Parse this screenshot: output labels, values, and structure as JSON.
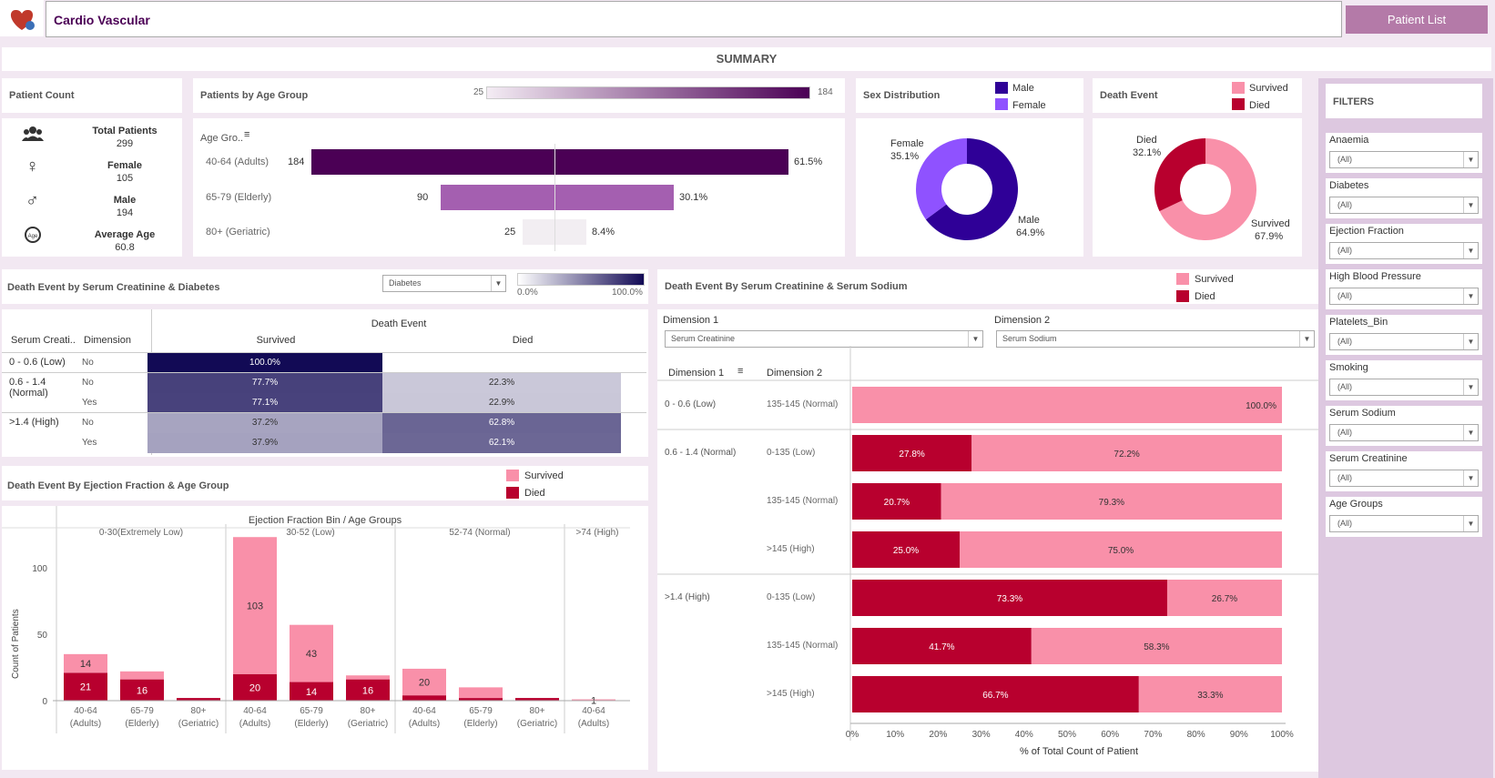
{
  "app": {
    "title": "Cardio Vascular",
    "patient_list_button": "Patient List",
    "summary": "SUMMARY"
  },
  "colors": {
    "purple": "#4b0055",
    "brand_bg": "#b47aa8",
    "survived": "#f990a9",
    "died": "#b8002e",
    "male": "#2f0097",
    "female": "#8f52ff"
  },
  "patient_count": {
    "title": "Patient Count",
    "items": [
      {
        "label": "Total Patients",
        "value": "299",
        "icon": "people-icon"
      },
      {
        "label": "Female",
        "value": "105",
        "icon": "female-icon"
      },
      {
        "label": "Male",
        "value": "194",
        "icon": "male-icon"
      },
      {
        "label": "Average Age",
        "value": "60.8",
        "icon": "age-icon"
      }
    ]
  },
  "age_group": {
    "title": "Patients by Age Group",
    "legend_min": "25",
    "legend_max": "184",
    "col_header": "Age Gro..",
    "rows": [
      {
        "label": "40-64 (Adults)",
        "count": 184,
        "count_label": "184",
        "pct": "61.5%"
      },
      {
        "label": "65-79 (Elderly)",
        "count": 90,
        "count_label": "90",
        "pct": "30.1%"
      },
      {
        "label": "80+ (Geriatric)",
        "count": 25,
        "count_label": "25",
        "pct": "8.4%"
      }
    ]
  },
  "sex": {
    "title": "Sex Distribution",
    "legend": [
      "Male",
      "Female"
    ],
    "female_label": "Female",
    "female_pct": "35.1%",
    "male_label": "Male",
    "male_pct": "64.9%",
    "female_value": 35.1,
    "male_value": 64.9
  },
  "death": {
    "title": "Death Event",
    "legend": [
      "Survived",
      "Died"
    ],
    "died_label": "Died",
    "died_pct": "32.1%",
    "survived_label": "Survived",
    "survived_pct": "67.9%",
    "died_value": 32.1,
    "survived_value": 67.9
  },
  "creat_diab": {
    "title": "Death Event by Serum Creatinine & Diabetes",
    "dropdown": "Diabetes",
    "scale_min": "0.0%",
    "scale_max": "100.0%",
    "col_serum": "Serum Creati..",
    "col_dim": "Dimension",
    "col_group": "Death Event",
    "col_survived": "Survived",
    "col_died": "Died",
    "rows": [
      {
        "group": "0 - 0.6 (Low)",
        "dim": "No",
        "survived": "100.0%",
        "died": "",
        "sv": 100,
        "dv": 0
      },
      {
        "group": "0.6 - 1.4\n(Normal)",
        "dim": "No",
        "survived": "77.7%",
        "died": "22.3%",
        "sv": 77.7,
        "dv": 22.3
      },
      {
        "group": "",
        "dim": "Yes",
        "survived": "77.1%",
        "died": "22.9%",
        "sv": 77.1,
        "dv": 22.9
      },
      {
        "group": ">1.4 (High)",
        "dim": "No",
        "survived": "37.2%",
        "died": "62.8%",
        "sv": 37.2,
        "dv": 62.8
      },
      {
        "group": "",
        "dim": "Yes",
        "survived": "37.9%",
        "died": "62.1%",
        "sv": 37.9,
        "dv": 62.1
      }
    ]
  },
  "ef_age": {
    "title": "Death Event By Ejection Fraction & Age Group",
    "legend": [
      "Survived",
      "Died"
    ],
    "header": "Ejection Fraction Bin  /  Age Groups",
    "y_label": "Count of Patients",
    "bins": [
      "0-30(Extremely Low)",
      "30-52 (Low)",
      "52-74 (Normal)",
      ">74 (High)"
    ],
    "y_ticks": [
      "0",
      "50",
      "100"
    ]
  },
  "chart_data": {
    "type": "bar",
    "title": "Death Event By Ejection Fraction & Age Group",
    "ylabel": "Count of Patients",
    "ylim": [
      0,
      130
    ],
    "categories": [
      "40-64\n(Adults)",
      "65-79\n(Elderly)",
      "80+\n(Geriatric)",
      "40-64\n(Adults)",
      "65-79\n(Elderly)",
      "80+\n(Geriatric)",
      "40-64\n(Adults)",
      "65-79\n(Elderly)",
      "80+\n(Geriatric)",
      "40-64\n(Adults)"
    ],
    "series": [
      {
        "name": "Died",
        "values": [
          21,
          16,
          2,
          20,
          14,
          16,
          4,
          2,
          2,
          0
        ],
        "labels": [
          "21",
          "16",
          "",
          "20",
          "14",
          "16",
          "",
          "",
          "",
          ""
        ]
      },
      {
        "name": "Survived",
        "values": [
          14,
          6,
          0,
          103,
          43,
          3,
          20,
          8,
          0,
          1
        ],
        "labels": [
          "14",
          "",
          "",
          "103",
          "43",
          "",
          "20",
          "",
          "",
          "1"
        ]
      }
    ]
  },
  "sodium": {
    "title": "Death Event By Serum Creatinine & Serum Sodium",
    "legend": [
      "Survived",
      "Died"
    ],
    "dim1_label": "Dimension 1",
    "dim2_label": "Dimension 2",
    "dim1_value": "Serum Creatinine",
    "dim2_value": "Serum Sodium",
    "col1": "Dimension 1",
    "col2": "Dimension 2",
    "x_label": "% of Total Count of Patient",
    "x_ticks": [
      "0%",
      "10%",
      "20%",
      "30%",
      "40%",
      "50%",
      "60%",
      "70%",
      "80%",
      "90%",
      "100%"
    ],
    "rows": [
      {
        "g": "0 - 0.6 (Low)",
        "d": "135-145 (Normal)",
        "died": 0,
        "dl": "",
        "sl": "100.0%"
      },
      {
        "g": "0.6 - 1.4 (Normal)",
        "d": "0-135 (Low)",
        "died": 27.8,
        "dl": "27.8%",
        "sl": "72.2%"
      },
      {
        "g": "",
        "d": "135-145 (Normal)",
        "died": 20.7,
        "dl": "20.7%",
        "sl": "79.3%"
      },
      {
        "g": "",
        "d": ">145 (High)",
        "died": 25.0,
        "dl": "25.0%",
        "sl": "75.0%"
      },
      {
        "g": ">1.4 (High)",
        "d": "0-135 (Low)",
        "died": 73.3,
        "dl": "73.3%",
        "sl": "26.7%"
      },
      {
        "g": "",
        "d": "135-145 (Normal)",
        "died": 41.7,
        "dl": "41.7%",
        "sl": "58.3%"
      },
      {
        "g": "",
        "d": ">145 (High)",
        "died": 66.7,
        "dl": "66.7%",
        "sl": "33.3%"
      }
    ]
  },
  "filters": {
    "title": "FILTERS",
    "items": [
      {
        "label": "Anaemia",
        "value": "(All)"
      },
      {
        "label": "Diabetes",
        "value": "(All)"
      },
      {
        "label": "Ejection Fraction",
        "value": "(All)"
      },
      {
        "label": "High Blood Pressure",
        "value": "(All)"
      },
      {
        "label": "Platelets_Bin",
        "value": "(All)"
      },
      {
        "label": "Smoking",
        "value": "(All)"
      },
      {
        "label": "Serum Sodium",
        "value": "(All)"
      },
      {
        "label": "Serum Creatinine",
        "value": "(All)"
      },
      {
        "label": "Age Groups",
        "value": "(All)"
      }
    ]
  }
}
